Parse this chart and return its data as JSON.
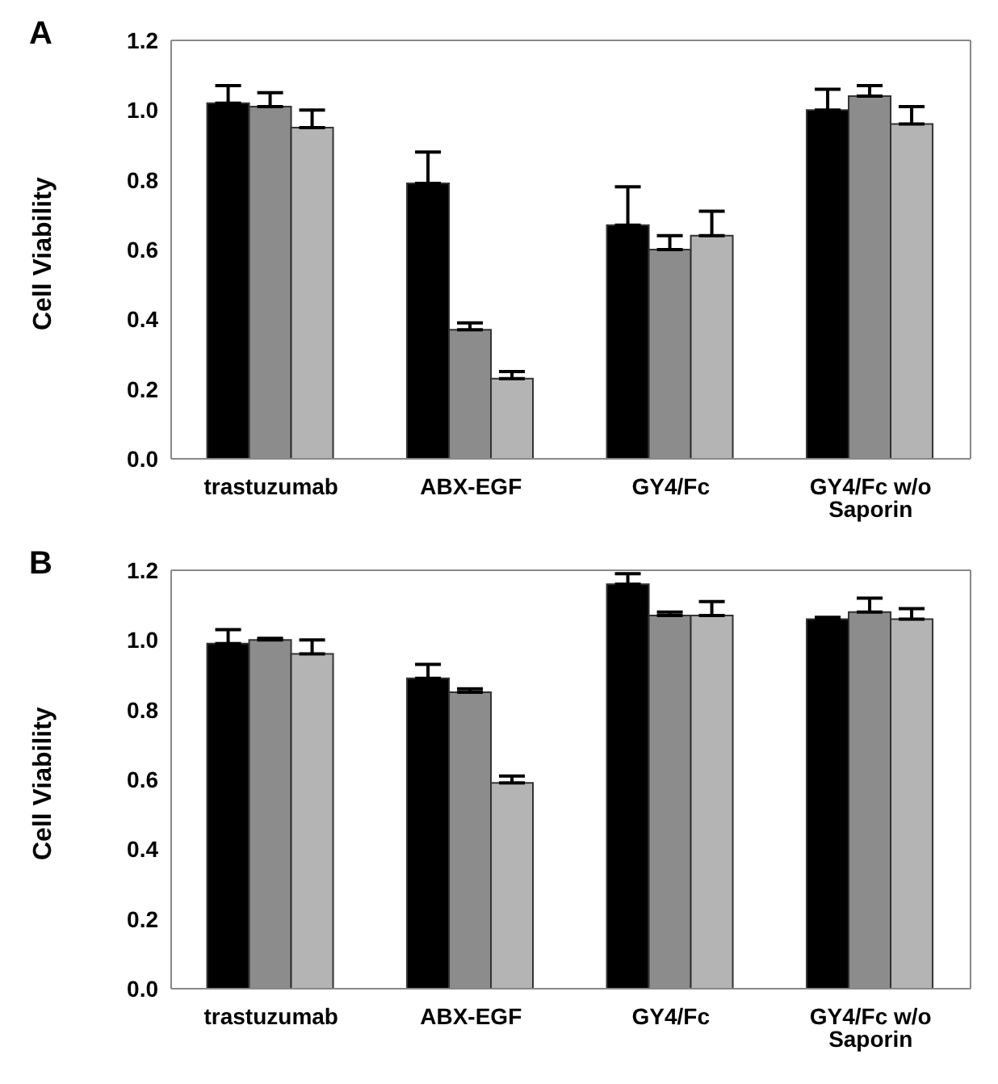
{
  "chart_data": [
    {
      "type": "bar",
      "title": "A",
      "ylabel": "Cell Viability",
      "categories": [
        "trastuzumab",
        "ABX-EGF",
        "GY4/Fc",
        "GY4/Fc w/o Saporin"
      ],
      "ylim": [
        0,
        1.2
      ],
      "yticks": [
        {
          "value": 0,
          "label": "0.0"
        },
        {
          "value": 0.2,
          "label": "0.2"
        },
        {
          "value": 0.4,
          "label": "0.4"
        },
        {
          "value": 0.6,
          "label": "0.6"
        },
        {
          "value": 0.8,
          "label": "0.8"
        },
        {
          "value": 1,
          "label": "1.0"
        },
        {
          "value": 1.2,
          "label": "1.2"
        }
      ],
      "grid": false,
      "legend": false,
      "series": [
        {
          "color": "#000000",
          "values": [
            1.02,
            0.79,
            0.67,
            1.0
          ],
          "errors": [
            [
              1.02,
              1.07
            ],
            [
              0.79,
              0.88
            ],
            [
              0.67,
              0.78
            ],
            [
              1.0,
              1.06
            ]
          ]
        },
        {
          "color": "#8c8c8c",
          "values": [
            1.01,
            0.37,
            0.6,
            1.04
          ],
          "errors": [
            [
              1.01,
              1.05
            ],
            [
              0.37,
              0.39
            ],
            [
              0.6,
              0.64
            ],
            [
              1.04,
              1.07
            ]
          ]
        },
        {
          "color": "#b4b4b4",
          "values": [
            0.95,
            0.23,
            0.64,
            0.96
          ],
          "errors": [
            [
              0.95,
              1.0
            ],
            [
              0.23,
              0.25
            ],
            [
              0.64,
              0.71
            ],
            [
              0.96,
              1.01
            ]
          ]
        }
      ]
    },
    {
      "type": "bar",
      "title": "B",
      "ylabel": "Cell Viability",
      "categories": [
        "trastuzumab",
        "ABX-EGF",
        "GY4/Fc",
        "GY4/Fc w/o Saporin"
      ],
      "ylim": [
        0,
        1.2
      ],
      "yticks": [
        {
          "value": 0,
          "label": "0.0"
        },
        {
          "value": 0.2,
          "label": "0.2"
        },
        {
          "value": 0.4,
          "label": "0.4"
        },
        {
          "value": 0.6,
          "label": "0.6"
        },
        {
          "value": 0.8,
          "label": "0.8"
        },
        {
          "value": 1,
          "label": "1.0"
        },
        {
          "value": 1.2,
          "label": "1.2"
        }
      ],
      "grid": false,
      "legend": false,
      "series": [
        {
          "color": "#000000",
          "values": [
            0.99,
            0.89,
            1.16,
            1.06
          ],
          "errors": [
            [
              0.99,
              1.03
            ],
            [
              0.89,
              0.93
            ],
            [
              1.16,
              1.19
            ],
            [
              1.06,
              1.065
            ]
          ]
        },
        {
          "color": "#8c8c8c",
          "values": [
            1.0,
            0.85,
            1.07,
            1.08
          ],
          "errors": [
            [
              1.0,
              1.005
            ],
            [
              0.85,
              0.86
            ],
            [
              1.07,
              1.08
            ],
            [
              1.08,
              1.12
            ]
          ]
        },
        {
          "color": "#b4b4b4",
          "values": [
            0.96,
            0.59,
            1.07,
            1.06
          ],
          "errors": [
            [
              0.96,
              1.0
            ],
            [
              0.59,
              0.61
            ],
            [
              1.07,
              1.11
            ],
            [
              1.06,
              1.09
            ]
          ]
        }
      ]
    }
  ]
}
